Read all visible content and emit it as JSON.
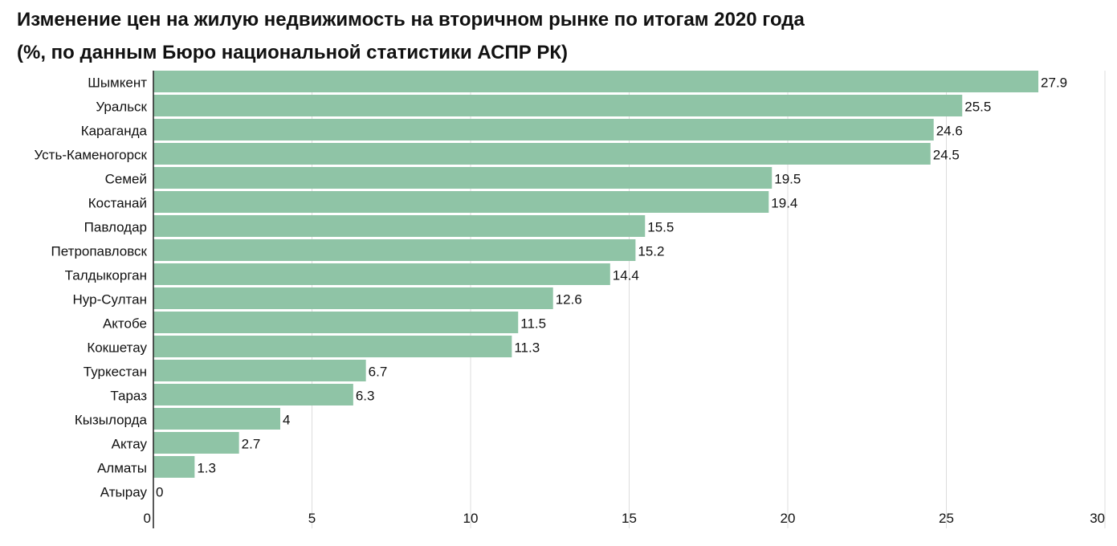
{
  "chart_data": {
    "type": "bar",
    "orientation": "horizontal",
    "title": "Изменение цен на жилую недвижимость на вторичном рынке по итогам 2020 года",
    "subtitle": "(%, по данным Бюро национальной статистики АСПР РК)",
    "categories": [
      "Шымкент",
      "Уральск",
      "Караганда",
      "Усть-Каменогорск",
      "Семей",
      "Костанай",
      "Павлодар",
      "Петропавловск",
      "Талдыкорган",
      "Нур-Султан",
      "Актобе",
      "Кокшетау",
      "Туркестан",
      "Тараз",
      "Кызылорда",
      "Актау",
      "Алматы",
      "Атырау"
    ],
    "values": [
      27.9,
      25.5,
      24.6,
      24.5,
      19.5,
      19.4,
      15.5,
      15.2,
      14.4,
      12.6,
      11.5,
      11.3,
      6.7,
      6.3,
      4,
      2.7,
      1.3,
      0
    ],
    "value_labels": [
      "27.9",
      "25.5",
      "24.6",
      "24.5",
      "19.5",
      "19.4",
      "15.5",
      "15.2",
      "14.4",
      "12.6",
      "11.5",
      "11.3",
      "6.7",
      "6.3",
      "4",
      "2.7",
      "1.3",
      "0"
    ],
    "xlim": [
      0,
      30
    ],
    "xticks": [
      0,
      5,
      10,
      15,
      20,
      25,
      30
    ],
    "grid": true,
    "bar_color": "#8fc4a6",
    "grid_color": "#dcdcdc"
  }
}
